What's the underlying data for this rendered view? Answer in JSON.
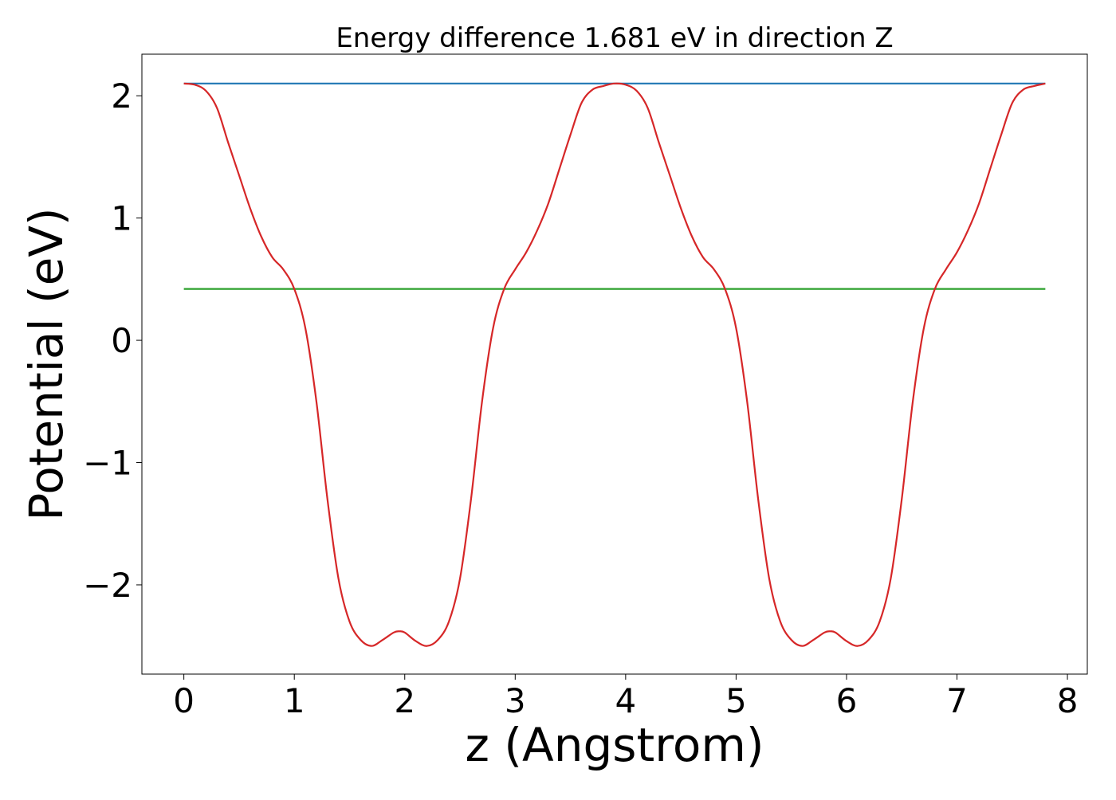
{
  "chart_data": {
    "type": "line",
    "title": "Energy difference 1.681 eV in direction Z",
    "xlabel": "z (Angstrom)",
    "ylabel": "Potential (eV)",
    "xlim": [
      -0.38,
      8.18
    ],
    "ylim": [
      -2.73,
      2.34
    ],
    "x_ticks": [
      0,
      1,
      2,
      3,
      4,
      5,
      6,
      7,
      8
    ],
    "x_tick_labels": [
      "0",
      "1",
      "2",
      "3",
      "4",
      "5",
      "6",
      "7",
      "8"
    ],
    "y_ticks": [
      -2,
      -1,
      0,
      1,
      2
    ],
    "y_tick_labels": [
      "−2",
      "−1",
      "0",
      "1",
      "2"
    ],
    "grid": false,
    "legend": "none",
    "series": [
      {
        "color": "#1f77b4",
        "x": [
          0,
          7.8
        ],
        "y": [
          2.1,
          2.1
        ]
      },
      {
        "color": "#2ca02c",
        "x": [
          0,
          7.8
        ],
        "y": [
          0.42,
          0.42
        ]
      },
      {
        "color": "#d62728",
        "x": [
          0.0,
          0.1,
          0.2,
          0.3,
          0.4,
          0.5,
          0.6,
          0.7,
          0.8,
          0.9,
          1.0,
          1.1,
          1.2,
          1.3,
          1.4,
          1.5,
          1.6,
          1.7,
          1.8,
          1.9,
          1.95,
          2.0,
          2.1,
          2.2,
          2.3,
          2.4,
          2.5,
          2.6,
          2.7,
          2.8,
          2.9,
          3.0,
          3.1,
          3.2,
          3.3,
          3.4,
          3.5,
          3.6,
          3.7,
          3.8,
          3.9,
          4.0,
          4.1,
          4.2,
          4.3,
          4.4,
          4.5,
          4.6,
          4.7,
          4.8,
          4.9,
          5.0,
          5.1,
          5.2,
          5.3,
          5.4,
          5.5,
          5.6,
          5.7,
          5.8,
          5.85,
          5.9,
          6.0,
          6.1,
          6.2,
          6.3,
          6.4,
          6.5,
          6.6,
          6.7,
          6.8,
          6.9,
          7.0,
          7.1,
          7.2,
          7.3,
          7.4,
          7.5,
          7.6,
          7.7,
          7.8
        ],
        "y": [
          2.1,
          2.09,
          2.04,
          1.9,
          1.62,
          1.35,
          1.08,
          0.85,
          0.68,
          0.58,
          0.42,
          0.1,
          -0.5,
          -1.3,
          -1.95,
          -2.3,
          -2.45,
          -2.5,
          -2.45,
          -2.39,
          -2.38,
          -2.39,
          -2.46,
          -2.5,
          -2.45,
          -2.3,
          -1.95,
          -1.3,
          -0.5,
          0.1,
          0.42,
          0.58,
          0.72,
          0.9,
          1.12,
          1.4,
          1.68,
          1.94,
          2.05,
          2.08,
          2.1,
          2.09,
          2.04,
          1.9,
          1.62,
          1.35,
          1.08,
          0.85,
          0.68,
          0.58,
          0.42,
          0.1,
          -0.5,
          -1.3,
          -1.95,
          -2.3,
          -2.45,
          -2.5,
          -2.45,
          -2.39,
          -2.38,
          -2.39,
          -2.46,
          -2.5,
          -2.45,
          -2.3,
          -1.95,
          -1.3,
          -0.5,
          0.1,
          0.42,
          0.58,
          0.72,
          0.9,
          1.12,
          1.4,
          1.68,
          1.94,
          2.05,
          2.08,
          2.1
        ]
      }
    ]
  }
}
